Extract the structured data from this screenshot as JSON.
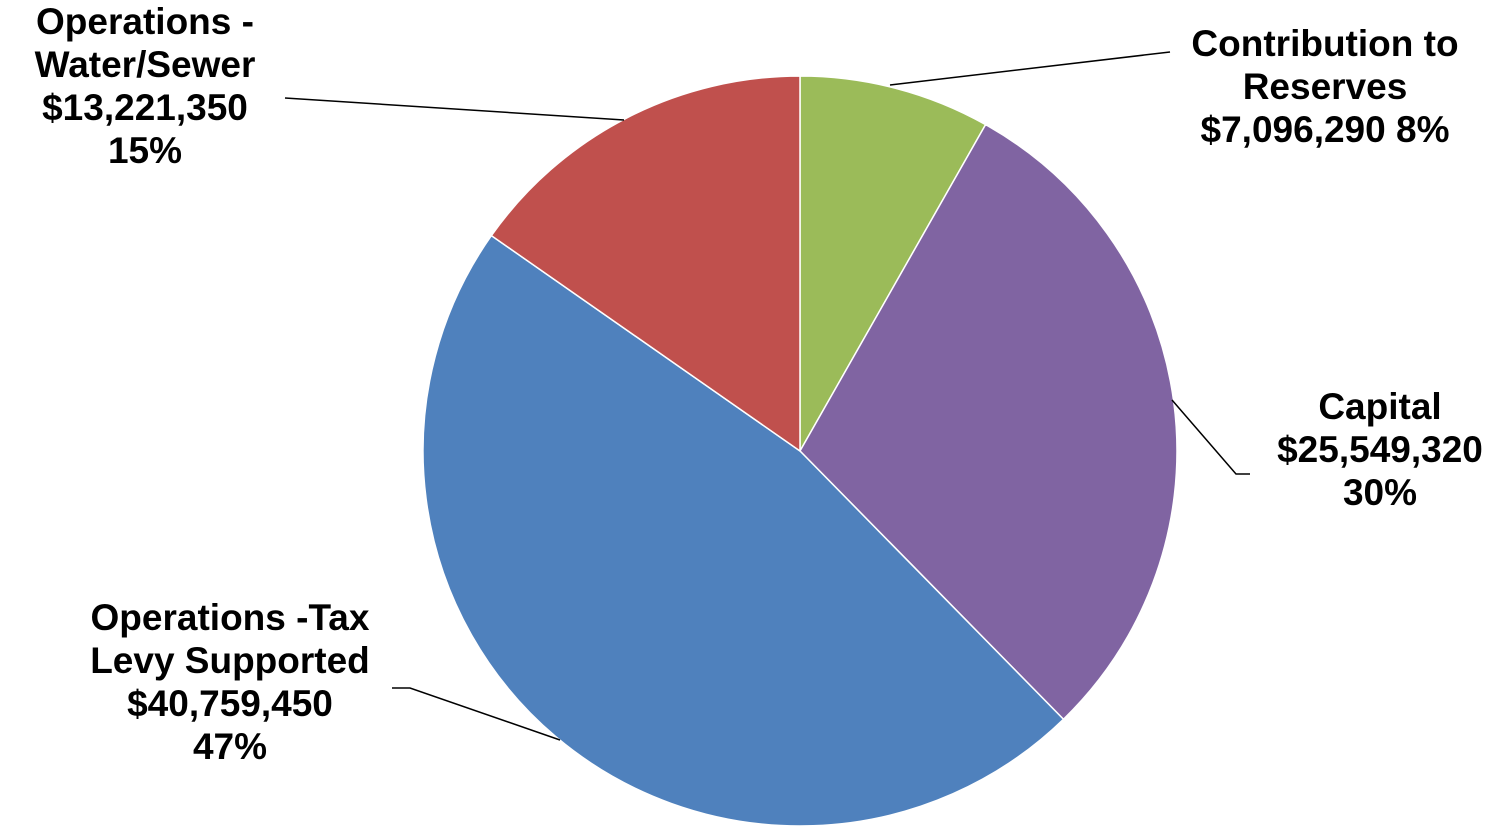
{
  "chart_data": {
    "type": "pie",
    "title": "",
    "legend": "none",
    "start_angle_deg": 0,
    "direction": "clockwise",
    "slices": [
      {
        "name": "Contribution to Reserves",
        "value": 7096290,
        "amount_label": "$7,096,290",
        "percent_label": "8%",
        "color": "#9BBB59",
        "label_lines": [
          "Contribution to",
          "Reserves",
          "$7,096,290  8%"
        ]
      },
      {
        "name": "Capital",
        "value": 25549320,
        "amount_label": "$25,549,320",
        "percent_label": "30%",
        "color": "#8064A2",
        "label_lines": [
          "Capital",
          "$25,549,320",
          "30%"
        ]
      },
      {
        "name": "Operations -Tax Levy Supported",
        "value": 40759450,
        "amount_label": "$40,759,450",
        "percent_label": "47%",
        "color": "#4F81BD",
        "label_lines": [
          "Operations -Tax",
          "Levy Supported",
          "$40,759,450",
          "47%"
        ]
      },
      {
        "name": "Operations - Water/Sewer",
        "value": 13221350,
        "amount_label": "$13,221,350",
        "percent_label": "15%",
        "color": "#C0504D",
        "label_lines": [
          "Operations -",
          "Water/Sewer",
          "$13,221,350",
          "15%"
        ]
      }
    ]
  }
}
